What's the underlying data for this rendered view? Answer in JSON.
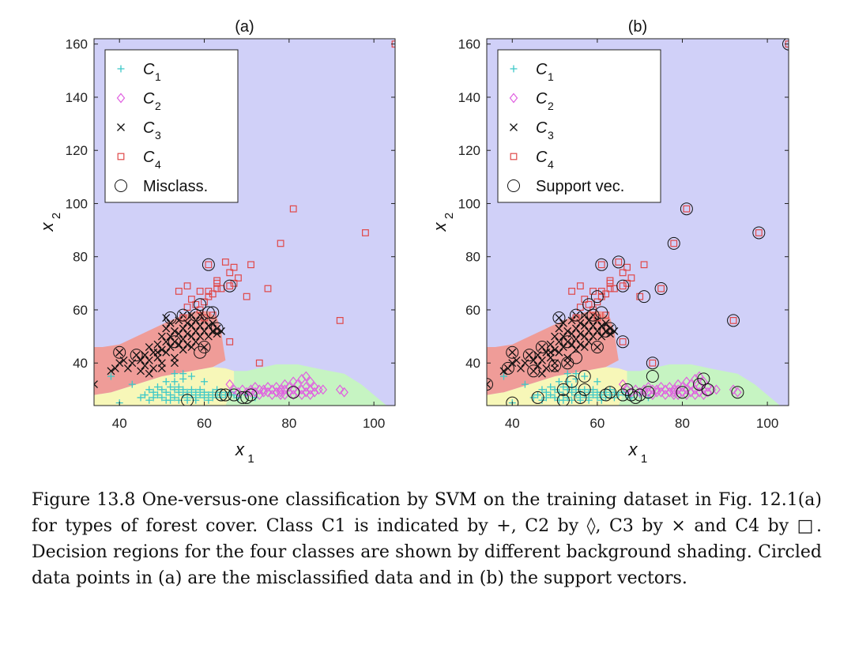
{
  "chart_data": [
    {
      "type": "scatter",
      "title": "(a)",
      "xlabel": "x",
      "xlabel_sub": "1",
      "ylabel": "x",
      "ylabel_sub": "2",
      "xlim": [
        34,
        105
      ],
      "ylim": [
        24,
        162
      ],
      "xticks": [
        40,
        60,
        80,
        100
      ],
      "yticks": [
        40,
        60,
        80,
        100,
        120,
        140,
        160
      ],
      "legend_position": "top-left",
      "legend": [
        {
          "marker": "plus",
          "label": "C",
          "sub": "1",
          "color": "#3cc8c8"
        },
        {
          "marker": "diamond",
          "label": "C",
          "sub": "2",
          "color": "#e060e0"
        },
        {
          "marker": "cross",
          "label": "C",
          "sub": "3",
          "color": "#111111"
        },
        {
          "marker": "square",
          "label": "C",
          "sub": "4",
          "color": "#e04848"
        },
        {
          "marker": "circle",
          "label": "Misclass.",
          "sub": "",
          "color": "#111111"
        }
      ],
      "circled": [
        [
          40,
          44
        ],
        [
          44,
          43
        ],
        [
          52,
          57
        ],
        [
          53,
          48
        ],
        [
          55,
          58
        ],
        [
          58,
          58
        ],
        [
          59,
          62
        ],
        [
          60,
          46
        ],
        [
          61,
          77
        ],
        [
          61,
          59
        ],
        [
          62,
          59
        ],
        [
          63,
          53
        ],
        [
          66,
          69
        ],
        [
          59,
          44
        ],
        [
          67,
          28
        ],
        [
          64,
          28
        ],
        [
          65,
          28
        ],
        [
          69,
          27
        ],
        [
          70,
          27
        ],
        [
          71,
          28
        ],
        [
          56,
          26
        ],
        [
          81,
          29
        ]
      ]
    },
    {
      "type": "scatter",
      "title": "(b)",
      "xlabel": "x",
      "xlabel_sub": "1",
      "ylabel": "x",
      "ylabel_sub": "2",
      "xlim": [
        34,
        105
      ],
      "ylim": [
        24,
        162
      ],
      "xticks": [
        40,
        60,
        80,
        100
      ],
      "yticks": [
        40,
        60,
        80,
        100,
        120,
        140,
        160
      ],
      "legend_position": "top-left",
      "legend": [
        {
          "marker": "plus",
          "label": "C",
          "sub": "1",
          "color": "#3cc8c8"
        },
        {
          "marker": "diamond",
          "label": "C",
          "sub": "2",
          "color": "#e060e0"
        },
        {
          "marker": "cross",
          "label": "C",
          "sub": "3",
          "color": "#111111"
        },
        {
          "marker": "square",
          "label": "C",
          "sub": "4",
          "color": "#e04848"
        },
        {
          "marker": "circle",
          "label": "Support vec.",
          "sub": "",
          "color": "#111111"
        }
      ],
      "circled": [
        [
          34,
          32
        ],
        [
          40,
          44
        ],
        [
          39,
          38
        ],
        [
          40,
          25
        ],
        [
          44,
          43
        ],
        [
          45,
          37
        ],
        [
          46,
          27
        ],
        [
          47,
          46
        ],
        [
          50,
          39
        ],
        [
          52,
          30
        ],
        [
          52,
          26
        ],
        [
          51,
          57
        ],
        [
          53,
          48
        ],
        [
          53,
          40
        ],
        [
          54,
          33
        ],
        [
          55,
          58
        ],
        [
          55,
          42
        ],
        [
          56,
          27
        ],
        [
          57,
          35
        ],
        [
          57,
          30
        ],
        [
          58,
          62
        ],
        [
          59,
          58
        ],
        [
          60,
          46
        ],
        [
          60,
          65
        ],
        [
          61,
          77
        ],
        [
          61,
          59
        ],
        [
          62,
          52
        ],
        [
          63,
          53
        ],
        [
          62,
          28
        ],
        [
          63,
          29
        ],
        [
          65,
          78
        ],
        [
          66,
          69
        ],
        [
          66,
          48
        ],
        [
          66,
          28
        ],
        [
          67,
          30
        ],
        [
          68,
          28
        ],
        [
          69,
          27
        ],
        [
          70,
          28
        ],
        [
          72,
          29
        ],
        [
          73,
          35
        ],
        [
          71,
          65
        ],
        [
          75,
          68
        ],
        [
          73,
          40
        ],
        [
          78,
          85
        ],
        [
          80,
          29
        ],
        [
          81,
          98
        ],
        [
          84,
          32
        ],
        [
          85,
          34
        ],
        [
          86,
          30
        ],
        [
          92,
          56
        ],
        [
          93,
          29
        ],
        [
          98,
          89
        ],
        [
          105,
          160
        ]
      ]
    }
  ],
  "classes": {
    "C1": [
      [
        38,
        35
      ],
      [
        40,
        25
      ],
      [
        43,
        32
      ],
      [
        45,
        27
      ],
      [
        46,
        28
      ],
      [
        47,
        26
      ],
      [
        47,
        30
      ],
      [
        48,
        29
      ],
      [
        48,
        27
      ],
      [
        49,
        31
      ],
      [
        49,
        28
      ],
      [
        50,
        27
      ],
      [
        50,
        30
      ],
      [
        51,
        26
      ],
      [
        51,
        29
      ],
      [
        52,
        31
      ],
      [
        52,
        28
      ],
      [
        52,
        26
      ],
      [
        53,
        33
      ],
      [
        53,
        30
      ],
      [
        53,
        27
      ],
      [
        54,
        29
      ],
      [
        54,
        26
      ],
      [
        54,
        31
      ],
      [
        55,
        28
      ],
      [
        55,
        30
      ],
      [
        55,
        34
      ],
      [
        56,
        27
      ],
      [
        56,
        29
      ],
      [
        56,
        26
      ],
      [
        57,
        30
      ],
      [
        57,
        28
      ],
      [
        57,
        35
      ],
      [
        58,
        27
      ],
      [
        58,
        29
      ],
      [
        58,
        26
      ],
      [
        59,
        28
      ],
      [
        59,
        30
      ],
      [
        60,
        27
      ],
      [
        60,
        29
      ],
      [
        61,
        28
      ],
      [
        61,
        26
      ],
      [
        62,
        29
      ],
      [
        62,
        27
      ],
      [
        63,
        28
      ],
      [
        63,
        30
      ],
      [
        64,
        27
      ],
      [
        64,
        29
      ],
      [
        65,
        28
      ],
      [
        66,
        29
      ],
      [
        67,
        28
      ],
      [
        68,
        27
      ],
      [
        70,
        28
      ],
      [
        72,
        27
      ],
      [
        51,
        33
      ],
      [
        53,
        36
      ],
      [
        55,
        36
      ],
      [
        60,
        33
      ]
    ],
    "C2": [
      [
        66,
        32
      ],
      [
        67,
        30
      ],
      [
        68,
        29
      ],
      [
        69,
        30
      ],
      [
        70,
        29
      ],
      [
        71,
        30
      ],
      [
        71,
        29
      ],
      [
        72,
        31
      ],
      [
        72,
        29
      ],
      [
        73,
        30
      ],
      [
        73,
        28
      ],
      [
        74,
        30
      ],
      [
        74,
        29
      ],
      [
        75,
        31
      ],
      [
        75,
        29
      ],
      [
        76,
        30
      ],
      [
        76,
        28
      ],
      [
        77,
        29
      ],
      [
        77,
        31
      ],
      [
        78,
        30
      ],
      [
        78,
        28
      ],
      [
        78,
        29
      ],
      [
        79,
        30
      ],
      [
        79,
        28
      ],
      [
        80,
        29
      ],
      [
        80,
        31
      ],
      [
        81,
        30
      ],
      [
        81,
        28
      ],
      [
        82,
        29
      ],
      [
        82,
        32
      ],
      [
        83,
        30
      ],
      [
        83,
        28
      ],
      [
        84,
        29
      ],
      [
        84,
        31
      ],
      [
        85,
        30
      ],
      [
        85,
        33
      ],
      [
        85,
        28
      ],
      [
        86,
        29
      ],
      [
        86,
        31
      ],
      [
        87,
        30
      ],
      [
        88,
        30
      ],
      [
        92,
        30
      ],
      [
        93,
        29
      ],
      [
        81,
        33
      ],
      [
        79,
        32
      ],
      [
        83,
        34
      ],
      [
        84,
        35
      ]
    ],
    "C3": [
      [
        34,
        32
      ],
      [
        38,
        37
      ],
      [
        39,
        38
      ],
      [
        40,
        40
      ],
      [
        40,
        44
      ],
      [
        41,
        41
      ],
      [
        42,
        38
      ],
      [
        43,
        40
      ],
      [
        44,
        43
      ],
      [
        45,
        37
      ],
      [
        45,
        41
      ],
      [
        46,
        43
      ],
      [
        46,
        39
      ],
      [
        47,
        46
      ],
      [
        47,
        41
      ],
      [
        48,
        44
      ],
      [
        48,
        38
      ],
      [
        49,
        42
      ],
      [
        49,
        47
      ],
      [
        50,
        45
      ],
      [
        50,
        40
      ],
      [
        50,
        50
      ],
      [
        51,
        48
      ],
      [
        51,
        44
      ],
      [
        51,
        53
      ],
      [
        51,
        57
      ],
      [
        52,
        46
      ],
      [
        52,
        50
      ],
      [
        52,
        55
      ],
      [
        53,
        48
      ],
      [
        53,
        42
      ],
      [
        53,
        52
      ],
      [
        54,
        47
      ],
      [
        54,
        51
      ],
      [
        54,
        56
      ],
      [
        55,
        45
      ],
      [
        55,
        49
      ],
      [
        55,
        53
      ],
      [
        55,
        58
      ],
      [
        56,
        47
      ],
      [
        56,
        51
      ],
      [
        56,
        55
      ],
      [
        57,
        46
      ],
      [
        57,
        50
      ],
      [
        57,
        54
      ],
      [
        57,
        58
      ],
      [
        58,
        48
      ],
      [
        58,
        52
      ],
      [
        58,
        56
      ],
      [
        59,
        50
      ],
      [
        59,
        54
      ],
      [
        59,
        58
      ],
      [
        60,
        46
      ],
      [
        60,
        52
      ],
      [
        60,
        56
      ],
      [
        61,
        50
      ],
      [
        61,
        54
      ],
      [
        62,
        52
      ],
      [
        62,
        55
      ],
      [
        63,
        51
      ],
      [
        63,
        53
      ],
      [
        64,
        52
      ],
      [
        53,
        40
      ],
      [
        47,
        36
      ],
      [
        49,
        44
      ],
      [
        50,
        38
      ]
    ],
    "C4": [
      [
        54,
        67
      ],
      [
        55,
        57
      ],
      [
        56,
        61
      ],
      [
        56,
        69
      ],
      [
        57,
        64
      ],
      [
        58,
        62
      ],
      [
        59,
        60
      ],
      [
        59,
        67
      ],
      [
        60,
        63
      ],
      [
        60,
        57
      ],
      [
        61,
        65
      ],
      [
        61,
        67
      ],
      [
        61,
        77
      ],
      [
        62,
        58
      ],
      [
        62,
        66
      ],
      [
        63,
        70
      ],
      [
        63,
        68
      ],
      [
        63,
        71
      ],
      [
        64,
        68
      ],
      [
        65,
        78
      ],
      [
        66,
        74
      ],
      [
        66,
        69
      ],
      [
        66,
        48
      ],
      [
        67,
        76
      ],
      [
        67,
        70
      ],
      [
        68,
        72
      ],
      [
        70,
        65
      ],
      [
        71,
        77
      ],
      [
        73,
        40
      ],
      [
        75,
        68
      ],
      [
        78,
        85
      ],
      [
        81,
        98
      ],
      [
        92,
        56
      ],
      [
        98,
        89
      ],
      [
        105,
        160
      ]
    ]
  },
  "regions": {
    "C1": "#f7f7b8",
    "C2": "#c6f4c2",
    "C3": "#ef9c98",
    "C4": "#d0d0f8"
  },
  "caption": {
    "figure_label": "Figure 13.8",
    "text": "One-versus-one classification by SVM on the training dataset in Fig. 12.1(a) for types of forest cover. Class C1 is indicated by +, C2 by ◊, C3 by × and C4 by □. Decision regions for the four classes are shown by different background shading. Circled data points in (a) are the misclassified data and in (b) the support vectors."
  }
}
